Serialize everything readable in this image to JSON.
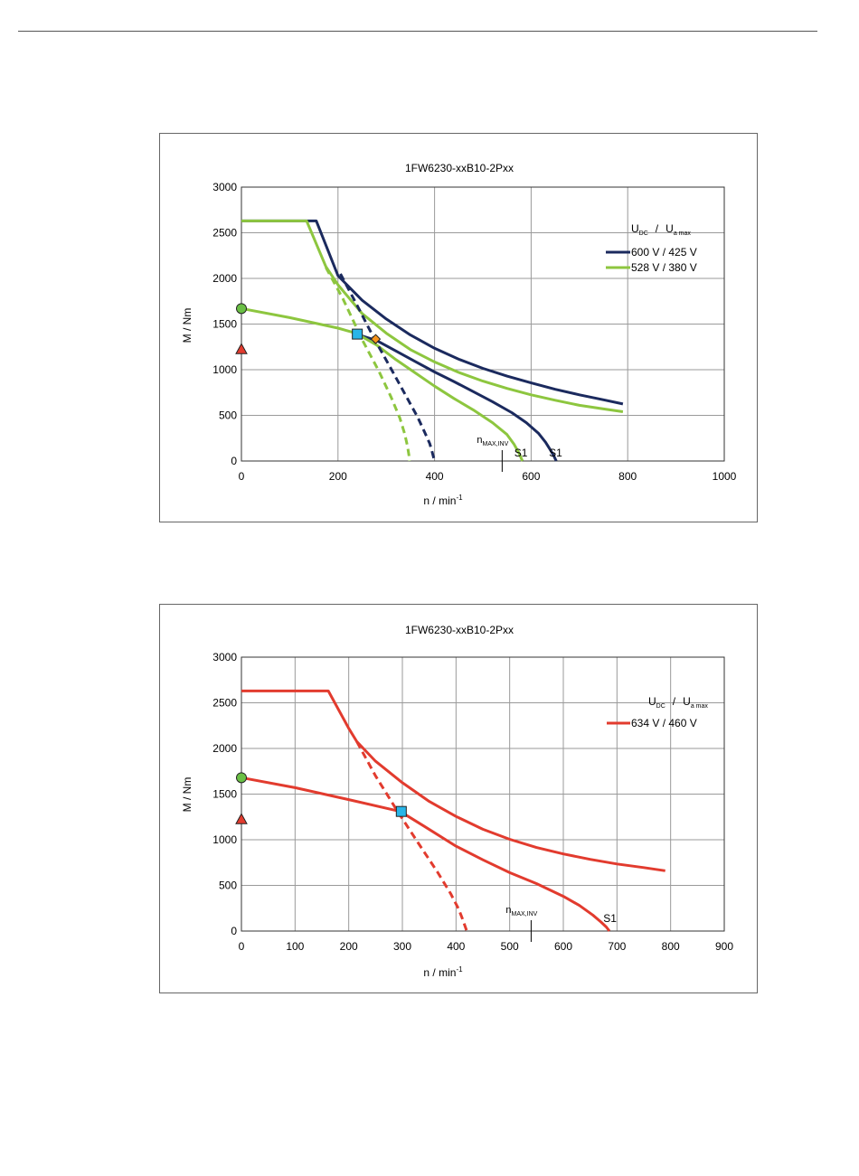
{
  "chart_data": [
    {
      "type": "line",
      "title": "1FW6230-xxB10-2Pxx",
      "xlabel": "n / min",
      "xlabel_sup": "-1",
      "ylabel": "M / Nm",
      "xlim": [
        0,
        1000
      ],
      "ylim": [
        0,
        3000
      ],
      "xticks": [
        "0",
        "200",
        "400",
        "600",
        "800",
        "1000"
      ],
      "yticks": [
        "0",
        "500",
        "1000",
        "1500",
        "2000",
        "2500",
        "3000"
      ],
      "xtick_values": [
        0,
        200,
        400,
        600,
        800,
        1000
      ],
      "ytick_values": [
        0,
        500,
        1000,
        1500,
        2000,
        2500,
        3000
      ],
      "grid": true,
      "legend": {
        "placement": "top-right",
        "header_u": "U",
        "header_dc": "DC",
        "header_slash": "/",
        "header_ua": "U",
        "header_amax": "a max",
        "entries": [
          "600 V / 425 V",
          "528 V / 380 V"
        ]
      },
      "annotations": {
        "nmax_label": "n",
        "nmax_sub": "MAX,INV",
        "nmax_x": 540,
        "s1_labels": [
          {
            "text": "S1",
            "x": 580,
            "y": 0
          },
          {
            "text": "S1",
            "x": 652,
            "y": 0
          }
        ]
      },
      "colors": {
        "series_1": "#1b2a5e",
        "series_2": "#8dc63f"
      },
      "series": [
        {
          "color": "#1b2a5e",
          "style": "solid",
          "x": [
            0,
            155,
            200,
            250,
            300,
            350,
            400,
            450,
            500,
            550,
            600,
            650,
            700,
            750,
            790
          ],
          "y": [
            2630,
            2630,
            2030,
            1760,
            1555,
            1380,
            1235,
            1115,
            1015,
            930,
            855,
            785,
            725,
            670,
            625
          ]
        },
        {
          "color": "#8dc63f",
          "style": "solid",
          "x": [
            0,
            135,
            175,
            200,
            250,
            300,
            350,
            400,
            450,
            500,
            550,
            600,
            650,
            700,
            750,
            790
          ],
          "y": [
            2630,
            2630,
            2130,
            1930,
            1615,
            1400,
            1220,
            1085,
            970,
            875,
            795,
            725,
            665,
            610,
            570,
            540
          ]
        },
        {
          "color": "#1b2a5e",
          "style": "solid",
          "x": [
            237,
            280,
            320,
            360,
            400,
            440,
            480,
            520,
            560,
            590,
            615,
            630,
            640,
            647,
            652
          ],
          "y": [
            1390,
            1320,
            1205,
            1090,
            975,
            870,
            760,
            650,
            530,
            420,
            305,
            205,
            120,
            55,
            0
          ]
        },
        {
          "color": "#8dc63f",
          "style": "solid",
          "x": [
            0,
            100,
            200,
            237,
            280,
            320,
            360,
            400,
            440,
            480,
            520,
            550,
            565,
            575,
            582
          ],
          "y": [
            1670,
            1570,
            1455,
            1400,
            1270,
            1110,
            965,
            820,
            685,
            560,
            420,
            290,
            180,
            85,
            0
          ]
        },
        {
          "color": "#1b2a5e",
          "style": "dashed",
          "x": [
            205,
            240,
            275,
            310,
            340,
            365,
            380,
            390,
            395,
            398,
            400
          ],
          "y": [
            2050,
            1700,
            1340,
            1010,
            720,
            480,
            310,
            190,
            100,
            40,
            0
          ]
        },
        {
          "color": "#8dc63f",
          "style": "dashed",
          "x": [
            175,
            210,
            250,
            285,
            310,
            328,
            338,
            344,
            347,
            348
          ],
          "y": [
            2120,
            1780,
            1330,
            980,
            700,
            470,
            300,
            160,
            60,
            0
          ]
        }
      ],
      "markers": [
        {
          "shape": "circle",
          "color": "#6abf45",
          "x": 0,
          "y": 1670
        },
        {
          "shape": "triangle",
          "color": "#e23b2e",
          "x": 0,
          "y": 1225
        },
        {
          "shape": "square",
          "color": "#29b5e8",
          "x": 240,
          "y": 1390
        },
        {
          "shape": "diamond",
          "color": "#f7941d",
          "x": 278,
          "y": 1335
        }
      ]
    },
    {
      "type": "line",
      "title": "1FW6230-xxB10-2Pxx",
      "xlabel": "n / min",
      "xlabel_sup": "-1",
      "ylabel": "M / Nm",
      "xlim": [
        0,
        900
      ],
      "ylim": [
        0,
        3000
      ],
      "xticks": [
        "0",
        "100",
        "200",
        "300",
        "400",
        "500",
        "600",
        "700",
        "800",
        "900"
      ],
      "yticks": [
        "0",
        "500",
        "1000",
        "1500",
        "2000",
        "2500",
        "3000"
      ],
      "xtick_values": [
        0,
        100,
        200,
        300,
        400,
        500,
        600,
        700,
        800,
        900
      ],
      "ytick_values": [
        0,
        500,
        1000,
        1500,
        2000,
        2500,
        3000
      ],
      "grid": true,
      "legend": {
        "placement": "top-right",
        "header_u": "U",
        "header_dc": "DC",
        "header_slash": "/",
        "header_ua": "U",
        "header_amax": "a max",
        "entries": [
          "634 V / 460 V"
        ]
      },
      "annotations": {
        "nmax_label": "n",
        "nmax_sub": "MAX,INV",
        "nmax_x": 540,
        "s1_labels": [
          {
            "text": "S1",
            "x": 688,
            "y": 50
          }
        ]
      },
      "colors": {
        "series_1": "#e23b2e"
      },
      "series": [
        {
          "color": "#e23b2e",
          "style": "solid",
          "x": [
            0,
            162,
            200,
            215,
            250,
            300,
            350,
            400,
            450,
            500,
            550,
            600,
            650,
            700,
            750,
            790
          ],
          "y": [
            2630,
            2630,
            2220,
            2075,
            1860,
            1625,
            1420,
            1255,
            1115,
            1005,
            915,
            845,
            785,
            735,
            695,
            660
          ]
        },
        {
          "color": "#e23b2e",
          "style": "solid",
          "x": [
            0,
            100,
            200,
            296,
            340,
            400,
            450,
            500,
            550,
            600,
            630,
            655,
            670,
            680,
            686
          ],
          "y": [
            1680,
            1570,
            1440,
            1310,
            1150,
            930,
            780,
            640,
            520,
            380,
            280,
            175,
            100,
            45,
            0
          ]
        },
        {
          "color": "#e23b2e",
          "style": "dashed",
          "x": [
            215,
            250,
            290,
            330,
            365,
            390,
            405,
            413,
            417,
            420
          ],
          "y": [
            2075,
            1700,
            1320,
            960,
            650,
            410,
            240,
            120,
            50,
            0
          ]
        }
      ],
      "markers": [
        {
          "shape": "circle",
          "color": "#6abf45",
          "x": 0,
          "y": 1680
        },
        {
          "shape": "triangle",
          "color": "#e23b2e",
          "x": 0,
          "y": 1225
        },
        {
          "shape": "square",
          "color": "#29b5e8",
          "x": 298,
          "y": 1310
        }
      ]
    }
  ]
}
